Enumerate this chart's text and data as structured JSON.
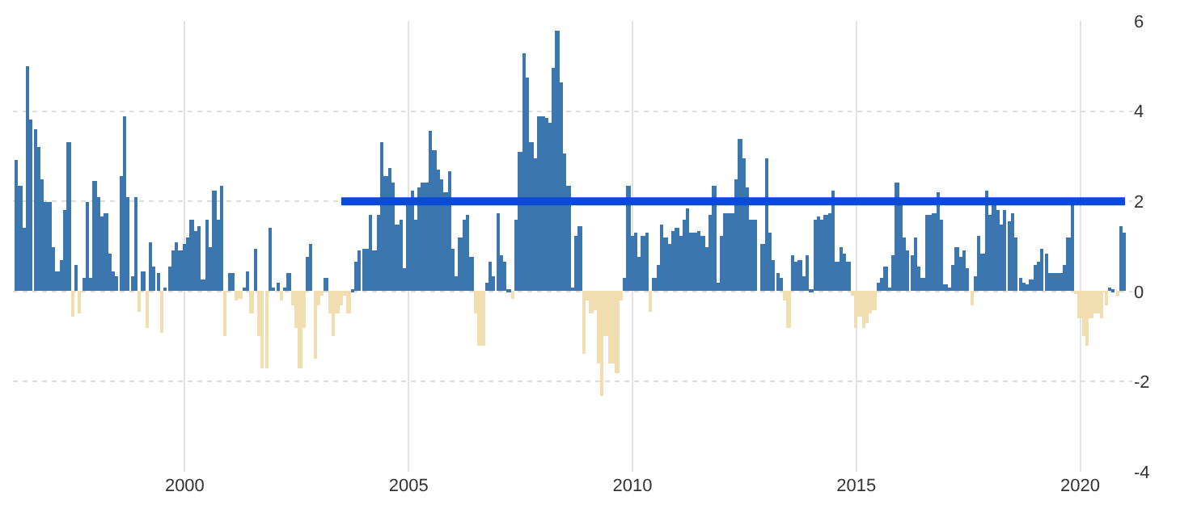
{
  "chart_data": {
    "type": "bar",
    "x": [
      "1996-04",
      "1996-05",
      "1996-06",
      "1996-07",
      "1996-08",
      "1996-09",
      "1996-10",
      "1996-11",
      "1996-12",
      "1997-01",
      "1997-02",
      "1997-03",
      "1997-04",
      "1997-05",
      "1997-06",
      "1997-07",
      "1997-08",
      "1997-09",
      "1997-10",
      "1997-11",
      "1997-12",
      "1998-01",
      "1998-02",
      "1998-03",
      "1998-04",
      "1998-05",
      "1998-06",
      "1998-07",
      "1998-08",
      "1998-09",
      "1998-10",
      "1998-11",
      "1998-12",
      "1999-01",
      "1999-02",
      "1999-03",
      "1999-04",
      "1999-05",
      "1999-06",
      "1999-07",
      "1999-08",
      "1999-09",
      "1999-10",
      "1999-11",
      "1999-12",
      "2000-01",
      "2000-02",
      "2000-03",
      "2000-04",
      "2000-05",
      "2000-06",
      "2000-07",
      "2000-08",
      "2000-09",
      "2000-10",
      "2000-11",
      "2000-12",
      "2001-01",
      "2001-02",
      "2001-03",
      "2001-04",
      "2001-05",
      "2001-06",
      "2001-07",
      "2001-08",
      "2001-09",
      "2001-10",
      "2001-11",
      "2001-12",
      "2002-01",
      "2002-02",
      "2002-03",
      "2002-04",
      "2002-05",
      "2002-06",
      "2002-07",
      "2002-08",
      "2002-09",
      "2002-10",
      "2002-11",
      "2002-12",
      "2003-01",
      "2003-02",
      "2003-03",
      "2003-04",
      "2003-05",
      "2003-06",
      "2003-07",
      "2003-08",
      "2003-09",
      "2003-10",
      "2003-11",
      "2003-12",
      "2004-01",
      "2004-02",
      "2004-03",
      "2004-04",
      "2004-05",
      "2004-06",
      "2004-07",
      "2004-08",
      "2004-09",
      "2004-10",
      "2004-11",
      "2004-12",
      "2005-01",
      "2005-02",
      "2005-03",
      "2005-04",
      "2005-05",
      "2005-06",
      "2005-07",
      "2005-08",
      "2005-09",
      "2005-10",
      "2005-11",
      "2005-12",
      "2006-01",
      "2006-02",
      "2006-03",
      "2006-04",
      "2006-05",
      "2006-06",
      "2006-07",
      "2006-08",
      "2006-09",
      "2006-10",
      "2006-11",
      "2006-12",
      "2007-01",
      "2007-02",
      "2007-03",
      "2007-04",
      "2007-05",
      "2007-06",
      "2007-07",
      "2007-08",
      "2007-09",
      "2007-10",
      "2007-11",
      "2007-12",
      "2008-01",
      "2008-02",
      "2008-03",
      "2008-04",
      "2008-05",
      "2008-06",
      "2008-07",
      "2008-08",
      "2008-09",
      "2008-10",
      "2008-11",
      "2008-12",
      "2009-01",
      "2009-02",
      "2009-03",
      "2009-04",
      "2009-05",
      "2009-06",
      "2009-07",
      "2009-08",
      "2009-09",
      "2009-10",
      "2009-11",
      "2009-12",
      "2010-01",
      "2010-02",
      "2010-03",
      "2010-04",
      "2010-05",
      "2010-06",
      "2010-07",
      "2010-08",
      "2010-09",
      "2010-10",
      "2010-11",
      "2010-12",
      "2011-01",
      "2011-02",
      "2011-03",
      "2011-04",
      "2011-05",
      "2011-06",
      "2011-07",
      "2011-08",
      "2011-09",
      "2011-10",
      "2011-11",
      "2011-12",
      "2012-01",
      "2012-02",
      "2012-03",
      "2012-04",
      "2012-05",
      "2012-06",
      "2012-07",
      "2012-08",
      "2012-09",
      "2012-10",
      "2012-11",
      "2012-12",
      "2013-01",
      "2013-02",
      "2013-03",
      "2013-04",
      "2013-05",
      "2013-06",
      "2013-07",
      "2013-08",
      "2013-09",
      "2013-10",
      "2013-11",
      "2013-12",
      "2014-01",
      "2014-02",
      "2014-03",
      "2014-04",
      "2014-05",
      "2014-06",
      "2014-07",
      "2014-08",
      "2014-09",
      "2014-10",
      "2014-11",
      "2014-12",
      "2015-01",
      "2015-02",
      "2015-03",
      "2015-04",
      "2015-05",
      "2015-06",
      "2015-07",
      "2015-08",
      "2015-09",
      "2015-10",
      "2015-11",
      "2015-12",
      "2016-01",
      "2016-02",
      "2016-03",
      "2016-04",
      "2016-05",
      "2016-06",
      "2016-07",
      "2016-08",
      "2016-09",
      "2016-10",
      "2016-11",
      "2016-12",
      "2017-01",
      "2017-02",
      "2017-03",
      "2017-04",
      "2017-05",
      "2017-06",
      "2017-07",
      "2017-08",
      "2017-09",
      "2017-10",
      "2017-11",
      "2017-12",
      "2018-01",
      "2018-02",
      "2018-03",
      "2018-04",
      "2018-05",
      "2018-06",
      "2018-07",
      "2018-08",
      "2018-09",
      "2018-10",
      "2018-11",
      "2018-12",
      "2019-01",
      "2019-02",
      "2019-03",
      "2019-04",
      "2019-05",
      "2019-06",
      "2019-07",
      "2019-08",
      "2019-09",
      "2019-10",
      "2019-11",
      "2019-12",
      "2020-01",
      "2020-02",
      "2020-03",
      "2020-04",
      "2020-05",
      "2020-06",
      "2020-07",
      "2020-08",
      "2020-09",
      "2020-10",
      "2020-11",
      "2020-12",
      "2021-01"
    ],
    "series": [
      {
        "color": "#3b76af",
        "values": [
          2.9,
          2.35,
          1.4,
          5.0,
          3.8,
          3.6,
          3.2,
          2.5,
          2.0,
          2.0,
          1.0,
          0.45,
          0.7,
          1.8,
          3.3,
          null,
          0.6,
          null,
          0.3,
          2.0,
          0.3,
          2.45,
          2.1,
          1.65,
          1.75,
          0.85,
          0.45,
          0.35,
          2.55,
          3.9,
          2.1,
          0.35,
          2.1,
          null,
          0.45,
          null,
          1.1,
          0.55,
          0.4,
          null,
          0.1,
          0.55,
          0.9,
          1.1,
          0.9,
          1.05,
          1.2,
          1.6,
          1.35,
          1.45,
          0.25,
          1.6,
          1.0,
          2.25,
          1.6,
          2.35,
          null,
          0.4,
          0.4,
          null,
          null,
          0.1,
          0.45,
          null,
          0.95,
          null,
          null,
          null,
          1.4,
          0.1,
          0.2,
          null,
          0.1,
          0.4,
          null,
          null,
          null,
          null,
          0.75,
          1.05,
          null,
          null,
          null,
          0.3,
          null,
          null,
          null,
          null,
          null,
          null,
          0.05,
          0.65,
          0.9,
          0.95,
          0.95,
          1.7,
          0.9,
          1.7,
          3.3,
          2.55,
          2.75,
          2.4,
          1.5,
          1.6,
          0.5,
          1.95,
          2.25,
          1.6,
          2.3,
          2.4,
          2.4,
          3.55,
          3.15,
          2.7,
          2.5,
          2.2,
          2.65,
          0.95,
          0.35,
          1.2,
          1.6,
          1.7,
          0.75,
          null,
          null,
          null,
          0.2,
          0.65,
          0.35,
          1.75,
          0.8,
          0.65,
          0.05,
          null,
          1.6,
          3.1,
          5.3,
          4.75,
          3.3,
          2.95,
          3.9,
          3.9,
          3.85,
          3.75,
          4.95,
          5.8,
          4.65,
          3.05,
          2.35,
          0.1,
          1.25,
          1.45,
          null,
          null,
          null,
          null,
          null,
          null,
          null,
          null,
          null,
          null,
          null,
          0.3,
          2.35,
          1.25,
          1.3,
          0.75,
          1.25,
          1.3,
          null,
          0.3,
          0.6,
          1.5,
          1.2,
          1.05,
          1.35,
          1.4,
          1.25,
          1.6,
          1.85,
          1.3,
          1.3,
          1.35,
          1.25,
          1.0,
          1.7,
          2.35,
          0.2,
          1.25,
          1.75,
          1.75,
          1.75,
          2.5,
          3.4,
          2.95,
          2.3,
          1.6,
          1.6,
          null,
          1.05,
          2.95,
          1.3,
          0.7,
          0.4,
          0.3,
          null,
          null,
          0.8,
          0.65,
          0.7,
          0.35,
          0.8,
          0.05,
          1.6,
          1.65,
          1.6,
          1.7,
          1.75,
          2.25,
          0.65,
          1.0,
          0.85,
          0.65,
          null,
          null,
          null,
          null,
          null,
          null,
          null,
          0.2,
          0.3,
          0.55,
          0.1,
          0.8,
          2.4,
          1.9,
          1.2,
          0.9,
          0.8,
          1.2,
          0.55,
          0.3,
          1.7,
          1.7,
          1.75,
          2.2,
          1.6,
          0.15,
          0.1,
          0.6,
          1.0,
          0.75,
          0.9,
          0.5,
          null,
          0.35,
          1.25,
          0.85,
          2.25,
          1.7,
          1.9,
          1.8,
          1.5,
          1.8,
          1.55,
          1.75,
          1.2,
          0.3,
          0.2,
          0.15,
          0.25,
          0.6,
          0.65,
          0.95,
          0.85,
          0.4,
          0.4,
          0.4,
          0.4,
          0.6,
          1.2,
          1.95,
          null,
          null,
          null,
          null,
          null,
          null,
          null,
          null,
          null,
          0.1,
          0.05,
          null,
          1.45,
          1.3
        ]
      },
      {
        "color": "#f0ddb0",
        "x": [
          "1997-07",
          "1997-09",
          "1999-01",
          "1999-03",
          "1999-07",
          "2000-12",
          "2001-03",
          "2001-04",
          "2001-07",
          "2001-09",
          "2001-10",
          "2001-11",
          "2002-03",
          "2002-06",
          "2002-07",
          "2002-08",
          "2002-09",
          "2002-12",
          "2003-01",
          "2003-02",
          "2003-04",
          "2003-05",
          "2003-06",
          "2003-07",
          "2003-08",
          "2003-09",
          "2006-07",
          "2006-08",
          "2006-09",
          "2007-05",
          "2008-12",
          "2009-01",
          "2009-02",
          "2009-03",
          "2009-04",
          "2009-05",
          "2009-06",
          "2009-07",
          "2009-08",
          "2009-09",
          "2009-10",
          "2010-06",
          "2013-06",
          "2013-07",
          "2014-12",
          "2015-01",
          "2015-02",
          "2015-03",
          "2015-04",
          "2015-05",
          "2015-06",
          "2017-08",
          "2019-12",
          "2020-01",
          "2020-02",
          "2020-03",
          "2020-04",
          "2020-05",
          "2020-06",
          "2020-07",
          "2020-08",
          "2020-11"
        ],
        "values": [
          -0.55,
          -0.5,
          -0.45,
          -0.8,
          -0.9,
          -1.0,
          -0.2,
          -0.15,
          -0.5,
          -1.0,
          -1.7,
          -1.7,
          -0.2,
          -0.3,
          -0.8,
          -1.7,
          -0.8,
          -1.5,
          -0.3,
          -0.1,
          -0.5,
          -1.0,
          -0.5,
          -0.3,
          -0.1,
          -0.5,
          -0.5,
          -1.2,
          -1.2,
          -0.15,
          -1.4,
          -0.2,
          -0.5,
          -0.4,
          -1.6,
          -2.3,
          -1.0,
          -1.6,
          -1.6,
          -1.8,
          -0.2,
          -0.45,
          -0.2,
          -0.8,
          -0.1,
          -0.8,
          -0.55,
          -0.8,
          -0.7,
          -0.5,
          -0.4,
          -0.3,
          -0.05,
          -0.6,
          -1.0,
          -1.2,
          -0.6,
          -0.5,
          -0.5,
          -0.6,
          -0.3,
          -0.1
        ]
      },
      {
        "type": "line",
        "color": "#0a4ad6",
        "x": [
          "2003-07",
          "2021-01"
        ],
        "values": [
          2,
          2
        ],
        "marker": "none",
        "line_style": "solid"
      }
    ],
    "xlim": [
      "1996-03",
      "2021-03"
    ],
    "xticks": [
      {
        "value": "2000",
        "label": "2000"
      },
      {
        "value": "2005",
        "label": "2005"
      },
      {
        "value": "2010",
        "label": "2010"
      },
      {
        "value": "2015",
        "label": "2015"
      },
      {
        "value": "2020",
        "label": "2020"
      }
    ],
    "ylim": [
      -4,
      6
    ],
    "yticks": [
      -4,
      -2,
      0,
      2,
      4,
      6
    ],
    "grid": true
  }
}
